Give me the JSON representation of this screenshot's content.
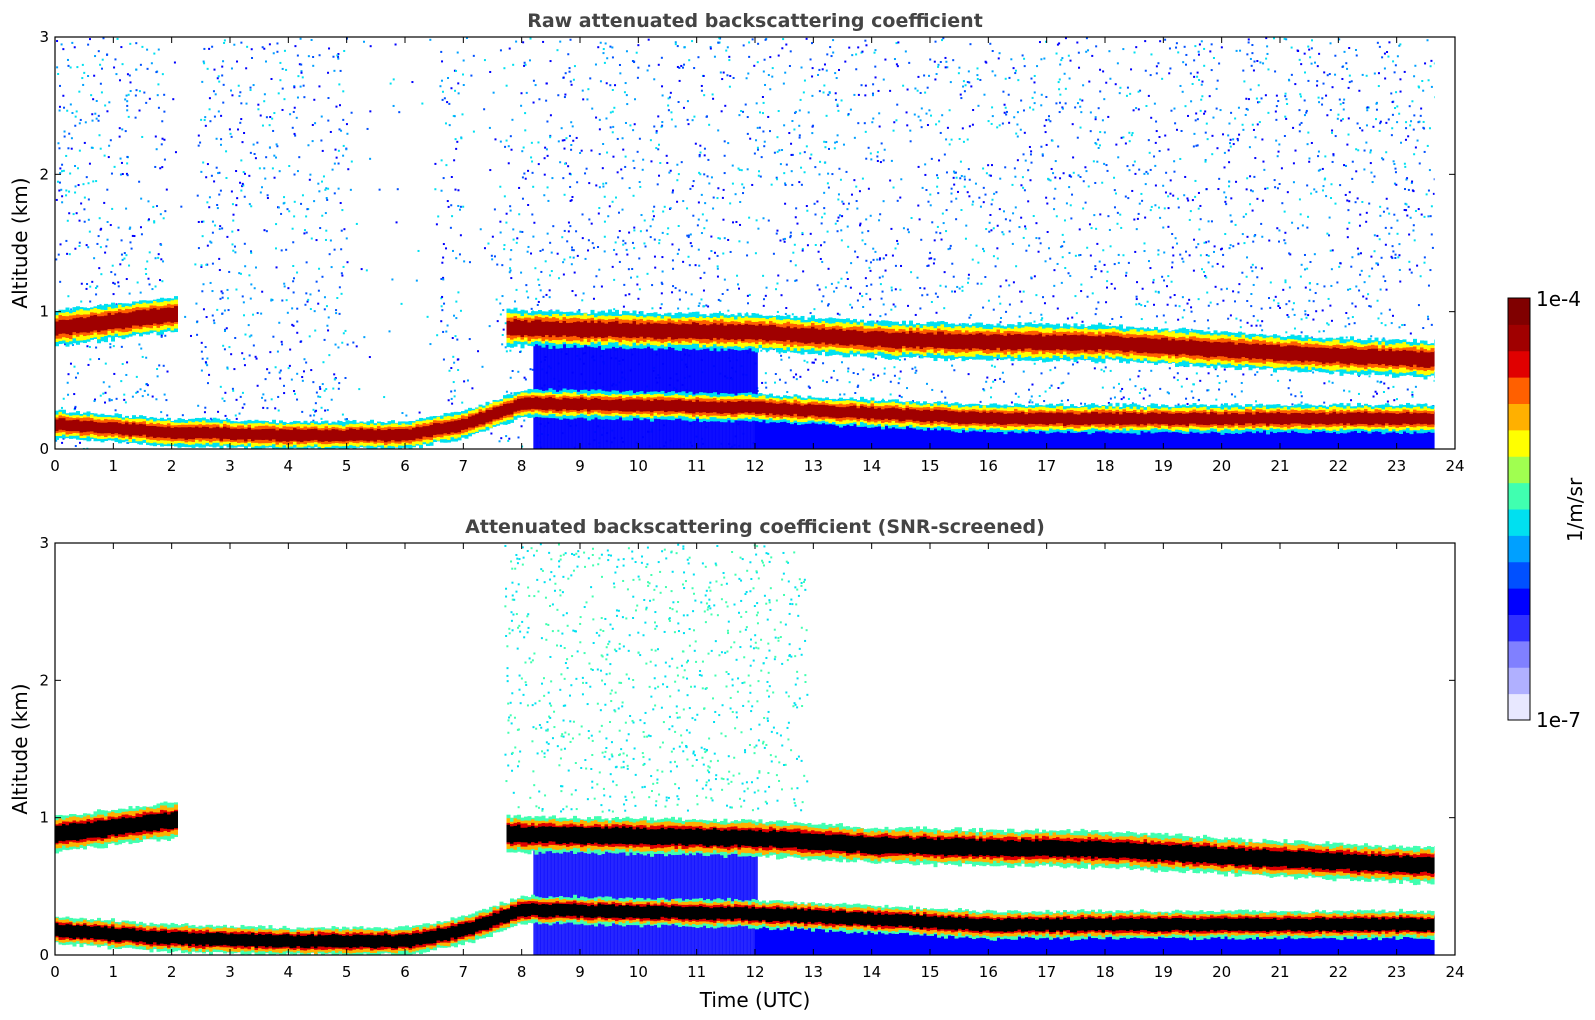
{
  "chart_data": [
    {
      "type": "heatmap",
      "title": "Raw attenuated backscattering coefficient",
      "xlabel": "",
      "ylabel": "Altitude (km)",
      "xlim": [
        0,
        24
      ],
      "ylim": [
        0,
        3
      ],
      "x_ticks": [
        0,
        1,
        2,
        3,
        4,
        5,
        6,
        7,
        8,
        9,
        10,
        11,
        12,
        13,
        14,
        15,
        16,
        17,
        18,
        19,
        20,
        21,
        22,
        23,
        24
      ],
      "y_ticks": [
        0,
        1,
        2,
        3
      ],
      "features": [
        {
          "name": "cloud base layer",
          "x": [
            0.0,
            2.0,
            7.8,
            12.0,
            14.0,
            16.0,
            18.0,
            20.0,
            22.0,
            23.6
          ],
          "y": [
            0.88,
            0.98,
            0.88,
            0.85,
            0.8,
            0.78,
            0.77,
            0.72,
            0.68,
            0.65
          ],
          "level": "1e-4"
        },
        {
          "name": "surface aerosol layer",
          "x": [
            0.0,
            2.0,
            4.0,
            6.0,
            7.0,
            8.0,
            12.0,
            16.0,
            20.0,
            23.6
          ],
          "y": [
            0.18,
            0.12,
            0.1,
            0.1,
            0.18,
            0.33,
            0.3,
            0.22,
            0.22,
            0.22
          ],
          "level": "1e-4"
        }
      ],
      "notes": "Data coverage from 0 to ~23.7 UTC"
    },
    {
      "type": "heatmap",
      "title": "Attenuated backscattering coefficient (SNR-screened)",
      "xlabel": "Time (UTC)",
      "ylabel": "Altitude (km)",
      "xlim": [
        0,
        24
      ],
      "ylim": [
        0,
        3
      ],
      "x_ticks": [
        0,
        1,
        2,
        3,
        4,
        5,
        6,
        7,
        8,
        9,
        10,
        11,
        12,
        13,
        14,
        15,
        16,
        17,
        18,
        19,
        20,
        21,
        22,
        23,
        24
      ],
      "y_ticks": [
        0,
        1,
        2,
        3
      ],
      "features": [
        {
          "name": "cloud base layer",
          "x": [
            0.0,
            2.0,
            7.8,
            12.0,
            14.0,
            16.0,
            18.0,
            20.0,
            22.0,
            23.6
          ],
          "y": [
            0.88,
            0.98,
            0.88,
            0.85,
            0.8,
            0.78,
            0.77,
            0.72,
            0.68,
            0.65
          ],
          "level": "saturated"
        },
        {
          "name": "surface aerosol layer",
          "x": [
            0.0,
            2.0,
            4.0,
            6.0,
            7.0,
            8.0,
            12.0,
            16.0,
            20.0,
            23.6
          ],
          "y": [
            0.18,
            0.12,
            0.1,
            0.1,
            0.18,
            0.33,
            0.3,
            0.22,
            0.22,
            0.22
          ],
          "level": "saturated"
        }
      ]
    }
  ],
  "colorbar": {
    "label": "1/m/sr",
    "max_label": "1e-4",
    "min_label": "1e-7",
    "colors": [
      "#e8e8ff",
      "#b0b0ff",
      "#8080ff",
      "#3030ff",
      "#0000ff",
      "#0050ff",
      "#00a0ff",
      "#00e0f0",
      "#40ffb0",
      "#a0ff50",
      "#ffff00",
      "#ffb000",
      "#ff6000",
      "#e00000",
      "#a00000",
      "#800000"
    ]
  }
}
